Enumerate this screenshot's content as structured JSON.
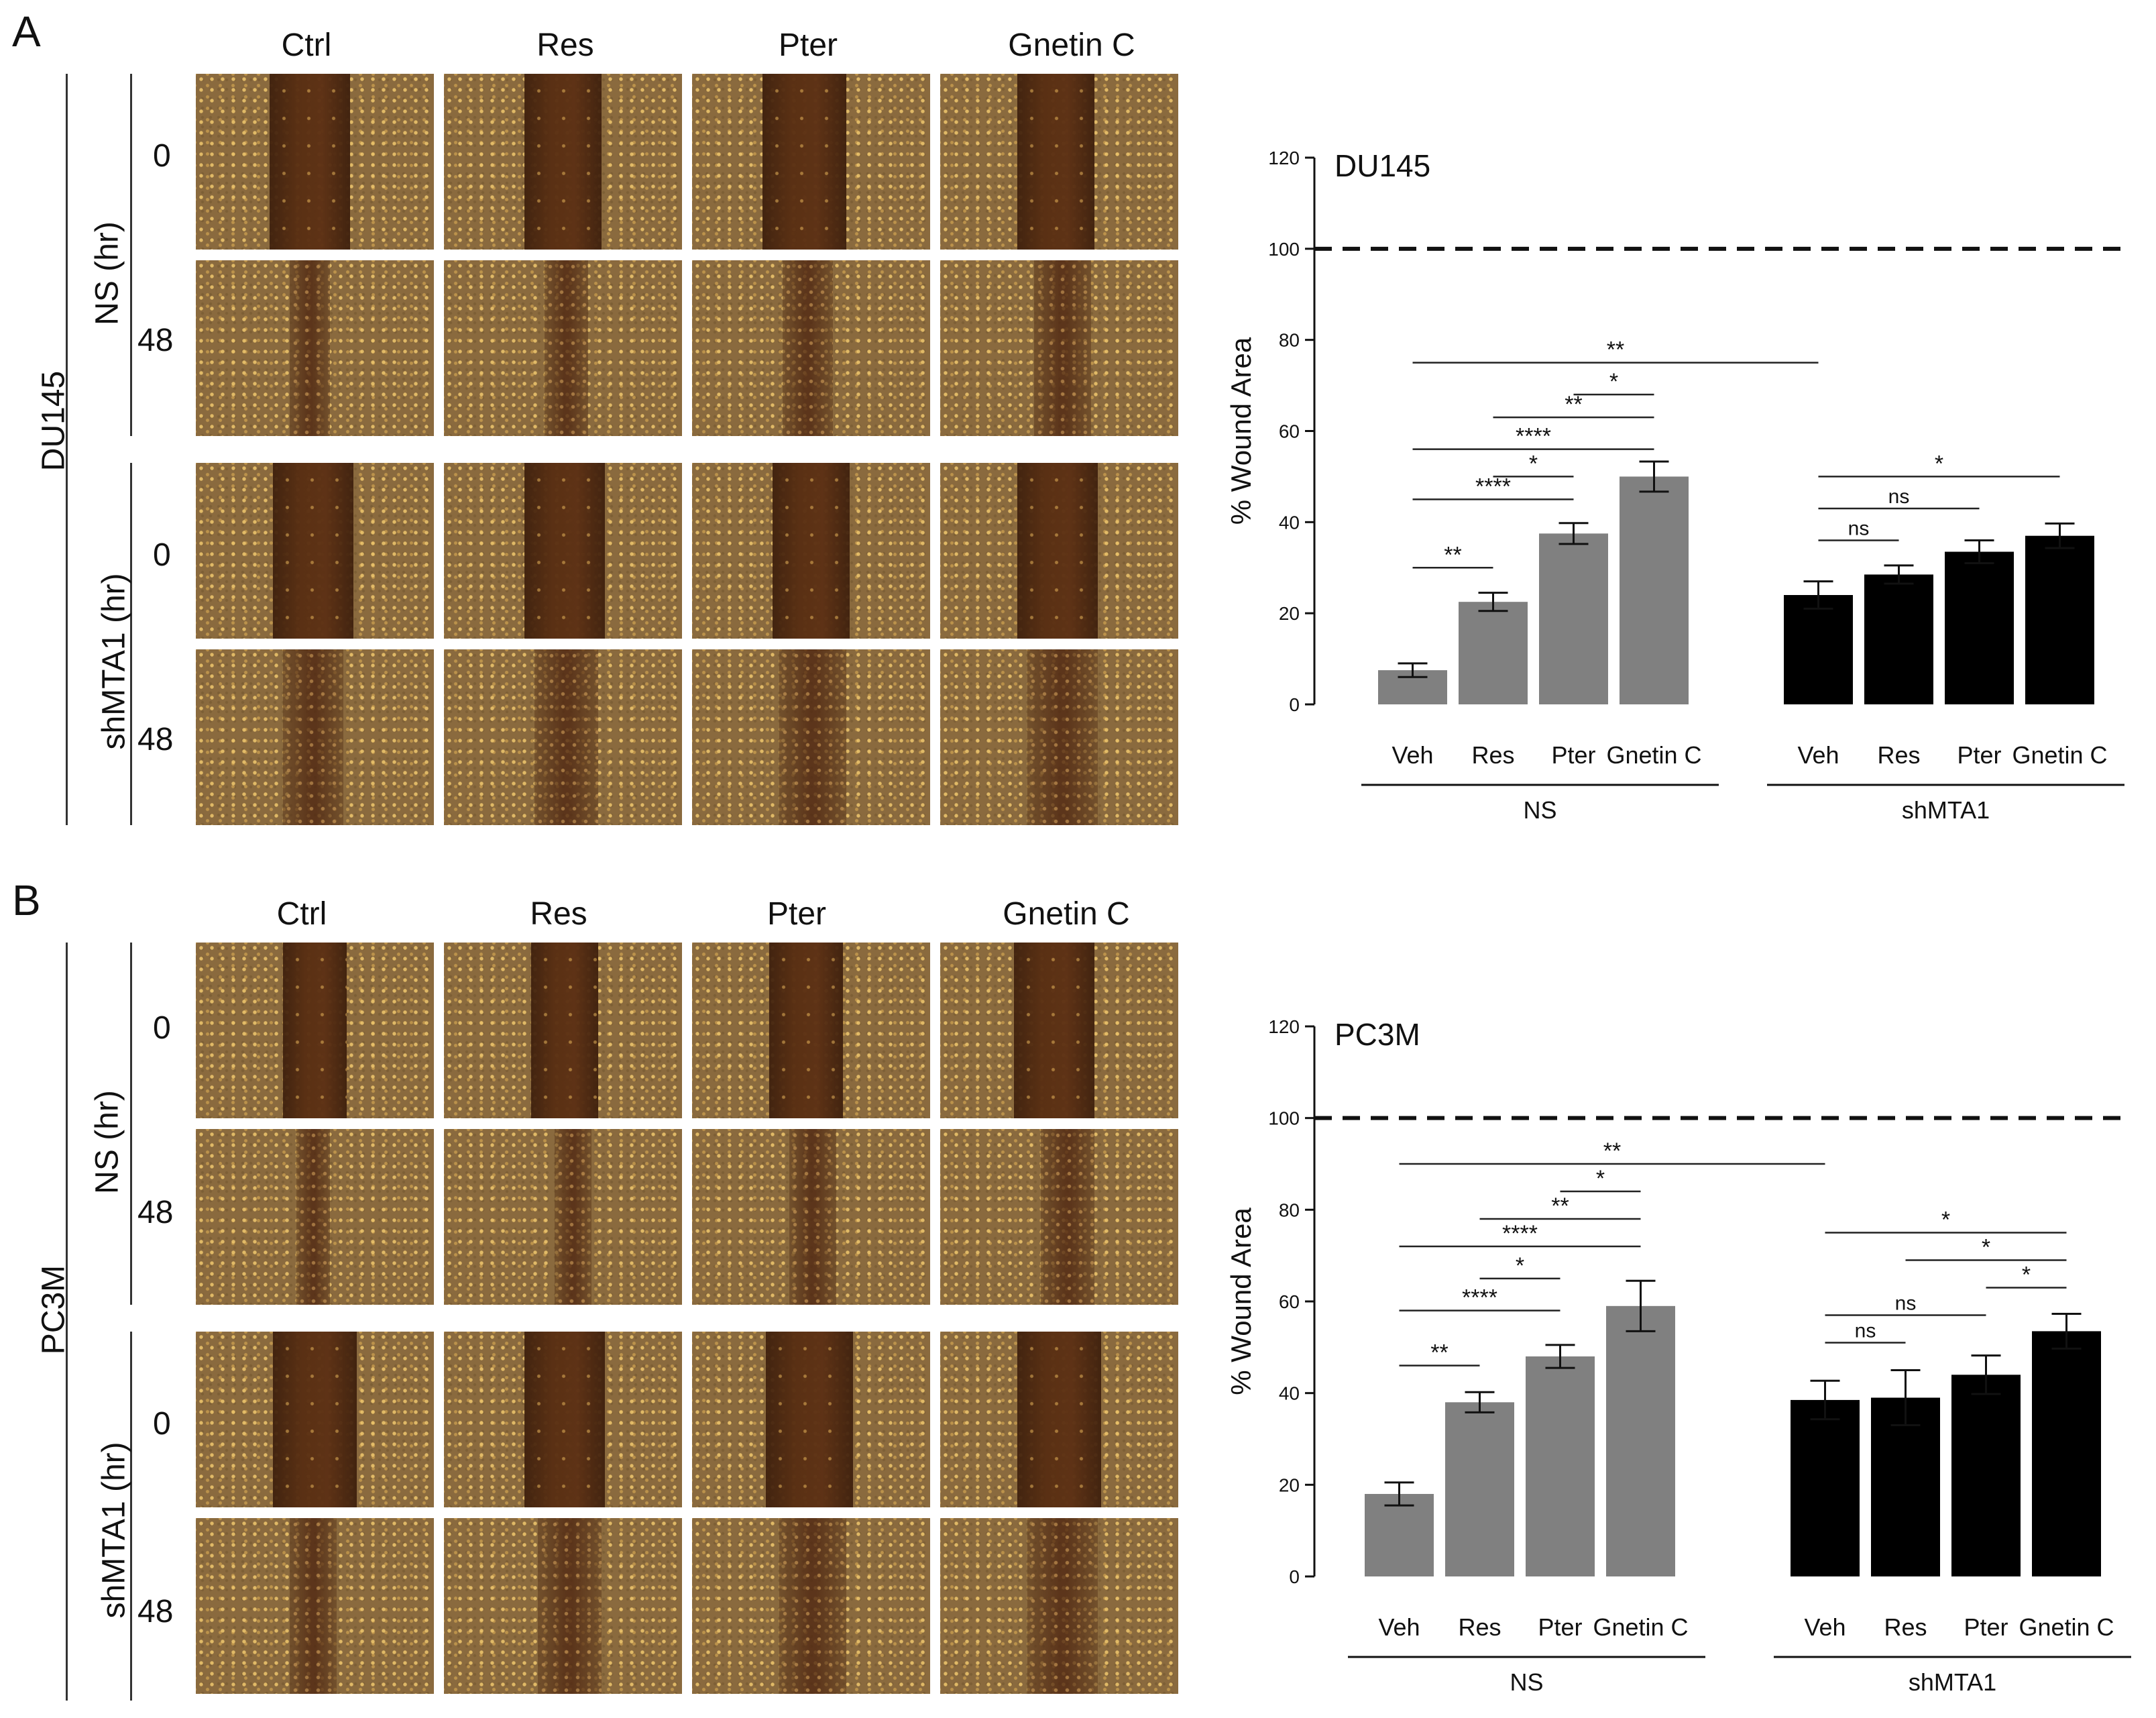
{
  "panels": [
    {
      "letter": "A",
      "cell_line": "DU145",
      "columns": [
        "Ctrl",
        "Res",
        "Pter",
        "Gnetin C"
      ],
      "groups": [
        {
          "label": "NS (hr)",
          "times": [
            "0",
            "48"
          ]
        },
        {
          "label": "shMTA1 (hr)",
          "times": [
            "0",
            "48"
          ]
        }
      ]
    },
    {
      "letter": "B",
      "cell_line": "PC3M",
      "columns": [
        "Ctrl",
        "Res",
        "Pter",
        "Gnetin C"
      ],
      "groups": [
        {
          "label": "NS (hr)",
          "times": [
            "0",
            "48"
          ]
        },
        {
          "label": "shMTA1 (hr)",
          "times": [
            "0",
            "48"
          ]
        }
      ]
    }
  ],
  "chart_data": [
    {
      "type": "bar",
      "title": "DU145",
      "ylabel": "% Wound Area",
      "ylim": [
        0,
        120
      ],
      "yticks": [
        0,
        20,
        40,
        60,
        80,
        100,
        120
      ],
      "reference_line": 100,
      "categories": [
        "Veh",
        "Res",
        "Pter",
        "Gnetin C"
      ],
      "series": [
        {
          "name": "NS",
          "color": "#808080",
          "values": [
            7.5,
            22.5,
            37.5,
            50
          ],
          "errors": [
            1.5,
            2,
            2.3,
            3.3
          ]
        },
        {
          "name": "shMTA1",
          "color": "#000000",
          "values": [
            24,
            28.5,
            33.5,
            37
          ],
          "errors": [
            3,
            2,
            2.5,
            2.7
          ]
        }
      ],
      "significance": [
        {
          "from": [
            0,
            0
          ],
          "to": [
            0,
            1
          ],
          "label": "**",
          "level": 30
        },
        {
          "from": [
            0,
            0
          ],
          "to": [
            0,
            2
          ],
          "label": "****",
          "level": 45
        },
        {
          "from": [
            0,
            1
          ],
          "to": [
            0,
            2
          ],
          "label": "*",
          "level": 50
        },
        {
          "from": [
            0,
            0
          ],
          "to": [
            0,
            3
          ],
          "label": "****",
          "level": 56
        },
        {
          "from": [
            0,
            1
          ],
          "to": [
            0,
            3
          ],
          "label": "**",
          "level": 63
        },
        {
          "from": [
            0,
            2
          ],
          "to": [
            0,
            3
          ],
          "label": "*",
          "level": 68
        },
        {
          "from": [
            0,
            0
          ],
          "to": [
            1,
            0
          ],
          "label": "**",
          "level": 75
        },
        {
          "from": [
            1,
            0
          ],
          "to": [
            1,
            1
          ],
          "label": "ns",
          "level": 36
        },
        {
          "from": [
            1,
            0
          ],
          "to": [
            1,
            2
          ],
          "label": "ns",
          "level": 43
        },
        {
          "from": [
            1,
            0
          ],
          "to": [
            1,
            3
          ],
          "label": "*",
          "level": 50
        }
      ]
    },
    {
      "type": "bar",
      "title": "PC3M",
      "ylabel": "% Wound Area",
      "ylim": [
        0,
        120
      ],
      "yticks": [
        0,
        20,
        40,
        60,
        80,
        100,
        120
      ],
      "reference_line": 100,
      "categories": [
        "Veh",
        "Res",
        "Pter",
        "Gnetin C"
      ],
      "series": [
        {
          "name": "NS",
          "color": "#808080",
          "values": [
            18,
            38,
            48,
            59
          ],
          "errors": [
            2.5,
            2.2,
            2.5,
            5.5
          ]
        },
        {
          "name": "shMTA1",
          "color": "#000000",
          "values": [
            38.5,
            39,
            44,
            53.5
          ],
          "errors": [
            4.2,
            6,
            4.2,
            3.8
          ]
        }
      ],
      "significance": [
        {
          "from": [
            0,
            0
          ],
          "to": [
            0,
            1
          ],
          "label": "**",
          "level": 46
        },
        {
          "from": [
            0,
            0
          ],
          "to": [
            0,
            2
          ],
          "label": "****",
          "level": 58
        },
        {
          "from": [
            0,
            1
          ],
          "to": [
            0,
            2
          ],
          "label": "*",
          "level": 65
        },
        {
          "from": [
            0,
            0
          ],
          "to": [
            0,
            3
          ],
          "label": "****",
          "level": 72
        },
        {
          "from": [
            0,
            1
          ],
          "to": [
            0,
            3
          ],
          "label": "**",
          "level": 78
        },
        {
          "from": [
            0,
            2
          ],
          "to": [
            0,
            3
          ],
          "label": "*",
          "level": 84
        },
        {
          "from": [
            0,
            0
          ],
          "to": [
            1,
            0
          ],
          "label": "**",
          "level": 90
        },
        {
          "from": [
            1,
            0
          ],
          "to": [
            1,
            1
          ],
          "label": "ns",
          "level": 51
        },
        {
          "from": [
            1,
            0
          ],
          "to": [
            1,
            2
          ],
          "label": "ns",
          "level": 57
        },
        {
          "from": [
            1,
            2
          ],
          "to": [
            1,
            3
          ],
          "label": "*",
          "level": 63
        },
        {
          "from": [
            1,
            1
          ],
          "to": [
            1,
            3
          ],
          "label": "*",
          "level": 69
        },
        {
          "from": [
            1,
            0
          ],
          "to": [
            1,
            3
          ],
          "label": "*",
          "level": 75
        }
      ]
    }
  ]
}
